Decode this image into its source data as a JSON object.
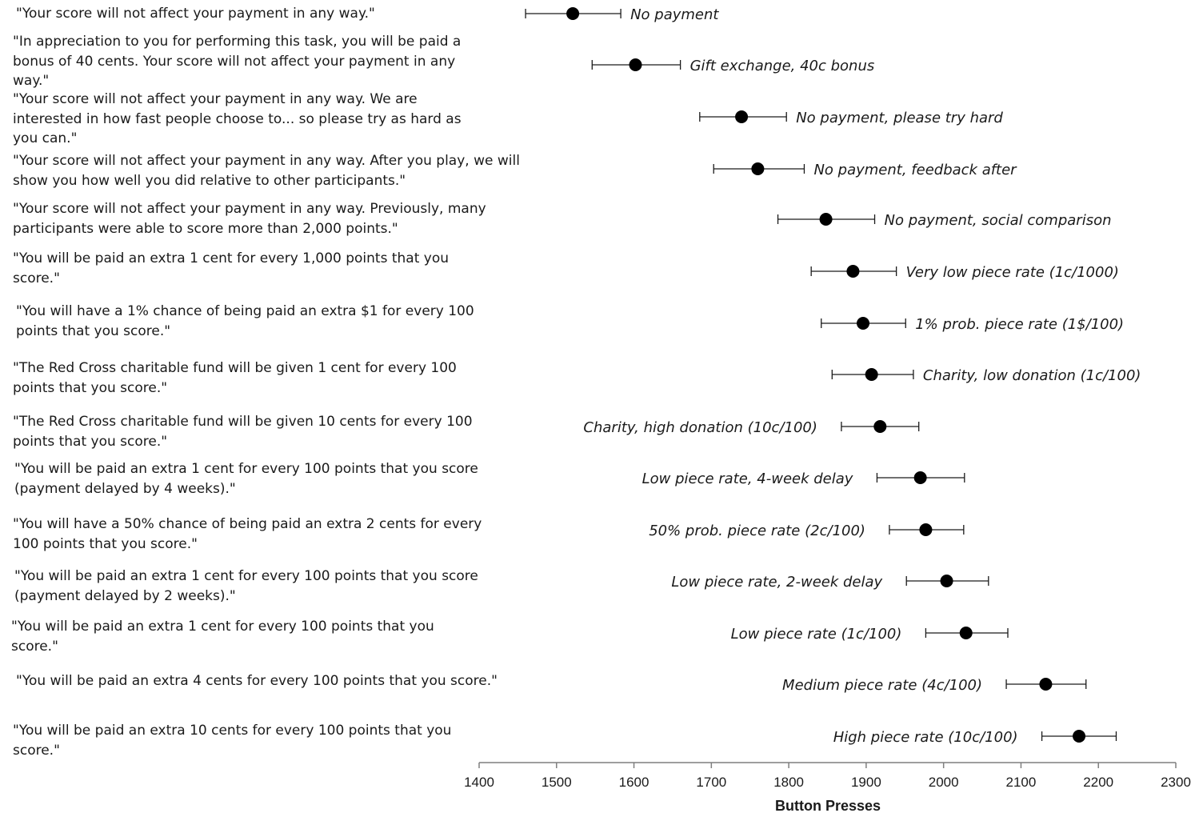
{
  "treatments": [
    {
      "quote": "\"Your score will not affect your payment in any way.\"",
      "label": "No payment"
    },
    {
      "quote": "\"In appreciation to you for performing this task, you will be paid a\nbonus of 40 cents. Your score will not affect your payment in any\nway.\"",
      "label": "Gift exchange, 40c bonus"
    },
    {
      "quote": "\"Your score will not affect your payment in any way. We are\ninterested in how fast people choose to...  so please try as hard as\nyou can.\"",
      "label": "No payment, please try hard"
    },
    {
      "quote": "\"Your score will not affect your payment in any way. After you play, we will\nshow you how well you did relative to other participants.\"",
      "label": "No payment, feedback after"
    },
    {
      "quote": "\"Your score will not affect your payment in any way. Previously, many\nparticipants were able to score more than 2,000 points.\"",
      "label": "No payment, social comparison"
    },
    {
      "quote": "\"You will be paid an extra 1 cent for every 1,000 points that you\nscore.\"",
      "label": "Very low piece rate (1c/1000)"
    },
    {
      "quote": "\"You will have a 1% chance of being paid an extra $1 for every 100\npoints that you score.\"",
      "label": "1% prob. piece rate (1$/100)"
    },
    {
      "quote": "\"The Red Cross charitable fund will be given 1 cent for every 100\npoints that you score.\"",
      "label": "Charity, low donation (1c/100)"
    },
    {
      "quote": "\"The Red Cross charitable fund will be given 10 cents for every 100\npoints that you score.\"",
      "label": "Charity, high donation (10c/100)"
    },
    {
      "quote": "\"You will be paid an extra 1 cent for every 100 points that you score\n(payment delayed by 4 weeks).\"",
      "label": "Low piece rate, 4-week delay"
    },
    {
      "quote": "\"You will have a 50% chance of being paid an extra 2 cents for every\n100 points that you score.\"",
      "label": "50% prob. piece rate (2c/100)"
    },
    {
      "quote": "\"You will be paid an extra 1 cent for every 100 points that you score\n(payment delayed by 2 weeks).\"",
      "label": "Low piece rate, 2-week delay"
    },
    {
      "quote": "\"You will  be paid an extra 1 cent for every 100 points that you\nscore.\"",
      "label": "Low piece rate (1c/100)"
    },
    {
      "quote": "\"You will be paid an extra 4 cents for every 100 points that you score.\"",
      "label": "Medium piece rate (4c/100)"
    },
    {
      "quote": "\"You will be paid an extra 10 cents for every 100 points that you\nscore.\"",
      "label": "High piece rate (10c/100)"
    }
  ],
  "chart_data": {
    "type": "scatter",
    "xlabel": "Button Presses",
    "xlim": [
      1400,
      2300
    ],
    "xticks": [
      1400,
      1500,
      1600,
      1700,
      1800,
      1900,
      2000,
      2100,
      2200,
      2300
    ],
    "grid": false,
    "error_bars": true,
    "categories": [
      "No payment",
      "Gift exchange, 40c bonus",
      "No payment, please try hard",
      "No payment, feedback after",
      "No payment, social comparison",
      "Very low piece rate (1c/1000)",
      "1% prob. piece rate (1$/100)",
      "Charity, low donation (1c/100)",
      "Charity, high donation (10c/100)",
      "Low piece rate, 4-week delay",
      "50% prob. piece rate (2c/100)",
      "Low piece rate, 2-week delay",
      "Low piece rate (1c/100)",
      "Medium piece rate (4c/100)",
      "High piece rate (10c/100)"
    ],
    "values": [
      1521,
      1602,
      1739,
      1760,
      1848,
      1883,
      1896,
      1907,
      1918,
      1970,
      1977,
      2004,
      2029,
      2132,
      2175
    ],
    "err_low": [
      1460,
      1546,
      1685,
      1703,
      1786,
      1829,
      1842,
      1856,
      1868,
      1914,
      1930,
      1952,
      1977,
      2081,
      2127
    ],
    "err_high": [
      1583,
      1660,
      1797,
      1820,
      1911,
      1939,
      1951,
      1961,
      1968,
      2027,
      2026,
      2058,
      2083,
      2184,
      2223
    ],
    "label_side": [
      "right",
      "right",
      "right",
      "right",
      "right",
      "right",
      "right",
      "right",
      "left",
      "left",
      "left",
      "left",
      "left",
      "left",
      "left"
    ]
  }
}
